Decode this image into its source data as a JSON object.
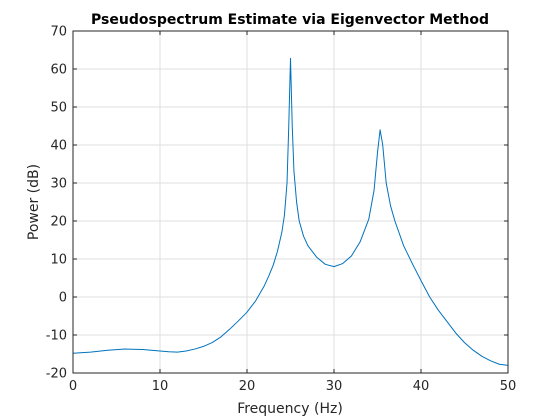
{
  "chart_data": {
    "type": "line",
    "title": "Pseudospectrum Estimate via Eigenvector Method",
    "xlabel": "Frequency (Hz)",
    "ylabel": "Power (dB)",
    "xlim": [
      0,
      50
    ],
    "ylim": [
      -20,
      70
    ],
    "xticks": [
      0,
      10,
      20,
      30,
      40,
      50
    ],
    "yticks": [
      -20,
      -10,
      0,
      10,
      20,
      30,
      40,
      50,
      60,
      70
    ],
    "grid": true,
    "series": [
      {
        "color": "#0072bd",
        "points": [
          [
            0,
            -14.8
          ],
          [
            2,
            -14.5
          ],
          [
            4,
            -14.0
          ],
          [
            6,
            -13.7
          ],
          [
            8,
            -13.8
          ],
          [
            10,
            -14.2
          ],
          [
            11,
            -14.4
          ],
          [
            12,
            -14.5
          ],
          [
            13,
            -14.2
          ],
          [
            14,
            -13.7
          ],
          [
            15,
            -13.0
          ],
          [
            16,
            -12.0
          ],
          [
            17,
            -10.5
          ],
          [
            18,
            -8.5
          ],
          [
            19,
            -6.3
          ],
          [
            20,
            -4.0
          ],
          [
            21,
            -1.0
          ],
          [
            22,
            3.0
          ],
          [
            22.5,
            5.5
          ],
          [
            23,
            8.3
          ],
          [
            23.5,
            12.0
          ],
          [
            24,
            17.0
          ],
          [
            24.3,
            21.5
          ],
          [
            24.6,
            30.0
          ],
          [
            24.8,
            45.0
          ],
          [
            25.0,
            62.8
          ],
          [
            25.2,
            45.0
          ],
          [
            25.4,
            33.0
          ],
          [
            25.7,
            25.0
          ],
          [
            26,
            20.0
          ],
          [
            26.5,
            16.0
          ],
          [
            27,
            13.5
          ],
          [
            28,
            10.5
          ],
          [
            29,
            8.6
          ],
          [
            30,
            8.0
          ],
          [
            31,
            8.8
          ],
          [
            32,
            10.8
          ],
          [
            33,
            14.5
          ],
          [
            34,
            20.5
          ],
          [
            34.6,
            28.0
          ],
          [
            35.0,
            38.0
          ],
          [
            35.3,
            44.0
          ],
          [
            35.6,
            40.0
          ],
          [
            36.0,
            30.0
          ],
          [
            36.5,
            24.0
          ],
          [
            37,
            20.0
          ],
          [
            38,
            13.5
          ],
          [
            39,
            8.8
          ],
          [
            40,
            4.3
          ],
          [
            41,
            0.0
          ],
          [
            42,
            -3.5
          ],
          [
            43,
            -6.5
          ],
          [
            44,
            -9.5
          ],
          [
            45,
            -12.0
          ],
          [
            46,
            -14.0
          ],
          [
            47,
            -15.6
          ],
          [
            48,
            -16.8
          ],
          [
            49,
            -17.7
          ],
          [
            50,
            -18.0
          ]
        ]
      }
    ]
  }
}
